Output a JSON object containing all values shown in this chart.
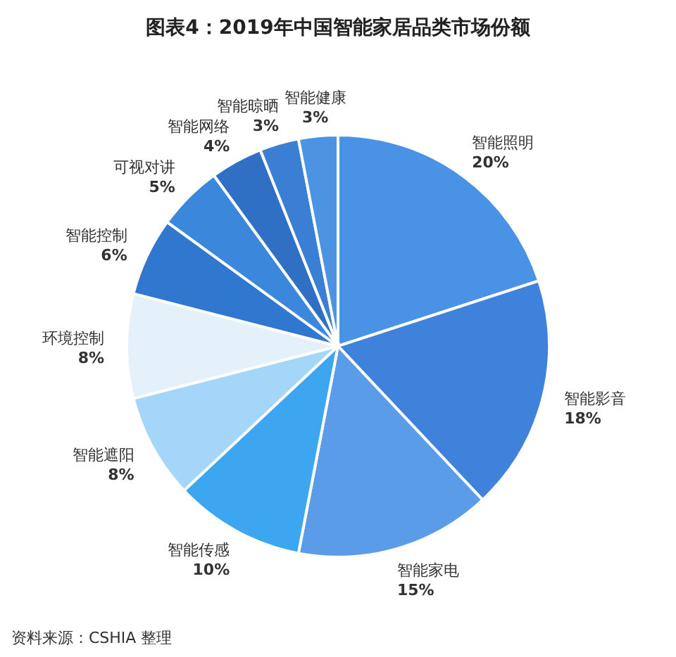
{
  "chart_data": {
    "type": "pie",
    "title": "图表4：2019年中国智能家居品类市场份额",
    "categories": [
      "智能照明",
      "智能影音",
      "智能家电",
      "智能传感",
      "智能遮阳",
      "环境控制",
      "智能控制",
      "可视对讲",
      "智能网络",
      "智能晾晒",
      "智能健康"
    ],
    "values": [
      20,
      18,
      15,
      10,
      8,
      8,
      6,
      5,
      4,
      3,
      3
    ],
    "colors": [
      "#4a92e6",
      "#3f82dc",
      "#5a9ce8",
      "#3ca6f0",
      "#a3d6f8",
      "#e4f1fb",
      "#3077cf",
      "#3a87dc",
      "#2f6fc4",
      "#3b7fd4",
      "#4c93e4"
    ],
    "value_labels": [
      "20%",
      "18%",
      "15%",
      "10%",
      "8%",
      "8%",
      "6%",
      "5%",
      "4%",
      "3%",
      "3%"
    ],
    "annotations": [
      "资料来源：CSHIA 整理"
    ]
  }
}
